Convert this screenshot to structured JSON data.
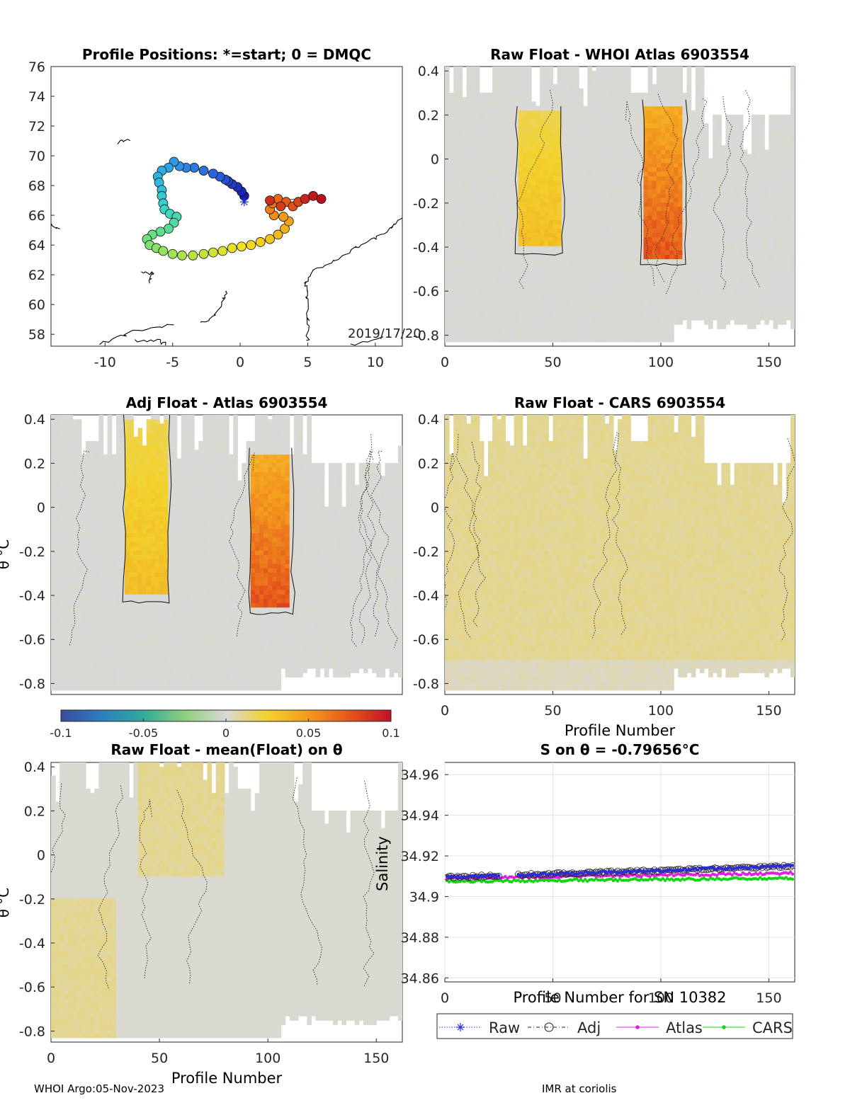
{
  "footer": {
    "left": "WHOI Argo:05-Nov-2023",
    "right": "IMR at coriolis"
  },
  "colorbar": {
    "ticks": [
      "-0.1",
      "-0.05",
      "0",
      "0.05",
      "0.1"
    ],
    "tick_values": [
      -0.1,
      -0.05,
      0,
      0.05,
      0.1
    ],
    "range": [
      -0.1,
      0.1
    ],
    "colormap": [
      "#3b4c9a",
      "#2f7fc0",
      "#31a99b",
      "#8fcf7a",
      "#d8d8d8",
      "#f2d22c",
      "#f39a1e",
      "#e5551c",
      "#c0102b"
    ]
  },
  "chart_data": [
    {
      "type": "scatter",
      "id": "map",
      "title": "Profile Positions: *=start; 0 = DMQC",
      "xlim": [
        -14,
        12
      ],
      "ylim": [
        57.2,
        76
      ],
      "xticks": [
        -10,
        -5,
        0,
        5,
        10
      ],
      "yticks": [
        58,
        60,
        62,
        64,
        66,
        68,
        70,
        72,
        74,
        76
      ],
      "annotation": "2019/17/20",
      "start_marker": {
        "lon": 0.3,
        "lat": 66.9
      },
      "track": [
        {
          "lon": 0.3,
          "lat": 67.3
        },
        {
          "lon": 0.1,
          "lat": 67.6
        },
        {
          "lon": -0.2,
          "lat": 67.9
        },
        {
          "lon": -0.6,
          "lat": 68.1
        },
        {
          "lon": -0.9,
          "lat": 68.3
        },
        {
          "lon": -1.1,
          "lat": 68.4
        },
        {
          "lon": -1.5,
          "lat": 68.6
        },
        {
          "lon": -2.0,
          "lat": 68.8
        },
        {
          "lon": -2.7,
          "lat": 69.0
        },
        {
          "lon": -3.4,
          "lat": 69.2
        },
        {
          "lon": -4.0,
          "lat": 69.2
        },
        {
          "lon": -4.5,
          "lat": 69.3
        },
        {
          "lon": -4.9,
          "lat": 69.6
        },
        {
          "lon": -5.3,
          "lat": 69.2
        },
        {
          "lon": -5.8,
          "lat": 69.0
        },
        {
          "lon": -6.1,
          "lat": 68.6
        },
        {
          "lon": -6.0,
          "lat": 68.2
        },
        {
          "lon": -5.8,
          "lat": 67.7
        },
        {
          "lon": -5.8,
          "lat": 67.3
        },
        {
          "lon": -5.7,
          "lat": 66.8
        },
        {
          "lon": -5.6,
          "lat": 66.4
        },
        {
          "lon": -5.2,
          "lat": 66.1
        },
        {
          "lon": -4.7,
          "lat": 65.9
        },
        {
          "lon": -4.9,
          "lat": 65.5
        },
        {
          "lon": -5.3,
          "lat": 65.1
        },
        {
          "lon": -5.9,
          "lat": 64.9
        },
        {
          "lon": -6.5,
          "lat": 64.7
        },
        {
          "lon": -6.9,
          "lat": 64.4
        },
        {
          "lon": -6.7,
          "lat": 64.0
        },
        {
          "lon": -6.2,
          "lat": 63.8
        },
        {
          "lon": -5.7,
          "lat": 63.6
        },
        {
          "lon": -5.0,
          "lat": 63.4
        },
        {
          "lon": -4.3,
          "lat": 63.3
        },
        {
          "lon": -3.5,
          "lat": 63.3
        },
        {
          "lon": -2.7,
          "lat": 63.4
        },
        {
          "lon": -2.0,
          "lat": 63.5
        },
        {
          "lon": -1.3,
          "lat": 63.6
        },
        {
          "lon": -0.6,
          "lat": 63.8
        },
        {
          "lon": 0.1,
          "lat": 63.9
        },
        {
          "lon": 0.8,
          "lat": 64.0
        },
        {
          "lon": 1.5,
          "lat": 64.2
        },
        {
          "lon": 2.2,
          "lat": 64.4
        },
        {
          "lon": 2.8,
          "lat": 64.7
        },
        {
          "lon": 3.3,
          "lat": 65.1
        },
        {
          "lon": 3.6,
          "lat": 65.6
        },
        {
          "lon": 3.2,
          "lat": 65.9
        },
        {
          "lon": 2.5,
          "lat": 66.0
        },
        {
          "lon": 2.2,
          "lat": 66.4
        },
        {
          "lon": 2.4,
          "lat": 66.8
        },
        {
          "lon": 2.8,
          "lat": 67.1
        },
        {
          "lon": 3.4,
          "lat": 66.9
        },
        {
          "lon": 3.9,
          "lat": 66.6
        },
        {
          "lon": 4.3,
          "lat": 66.9
        },
        {
          "lon": 3.0,
          "lat": 66.6
        },
        {
          "lon": 2.2,
          "lat": 67.0
        },
        {
          "lon": 4.8,
          "lat": 67.1
        },
        {
          "lon": 5.4,
          "lat": 67.3
        },
        {
          "lon": 6.0,
          "lat": 67.1
        }
      ]
    },
    {
      "type": "heatmap",
      "id": "raw-atlas",
      "title": "Raw Float - WHOI Atlas  6903554",
      "xlim": [
        0,
        162
      ],
      "ylim": [
        -0.85,
        0.42
      ],
      "xticks": [
        0,
        50,
        100,
        150
      ],
      "yticks": [
        0.4,
        0.2,
        0,
        -0.2,
        -0.4,
        -0.6,
        -0.8
      ],
      "xlabel": "",
      "ylabel": "",
      "bands": [
        {
          "x0": 35,
          "x1": 53,
          "y0": -0.4,
          "y1": 0.22,
          "peak": 0.035
        },
        {
          "x0": 93,
          "x1": 110,
          "y0": -0.45,
          "y1": 0.25,
          "peak": 0.075
        }
      ]
    },
    {
      "type": "heatmap",
      "id": "adj-atlas",
      "title": "Adj Float - Atlas  6903554",
      "xlim": [
        0,
        162
      ],
      "ylim": [
        -0.85,
        0.42
      ],
      "xticks": [],
      "yticks": [
        0.4,
        0.2,
        0,
        -0.2,
        -0.4,
        -0.6,
        -0.8
      ],
      "xlabel": "",
      "ylabel": "θ °C",
      "bands": [
        {
          "x0": 35,
          "x1": 53,
          "y0": -0.4,
          "y1": 0.4,
          "peak": 0.035
        },
        {
          "x0": 93,
          "x1": 110,
          "y0": -0.45,
          "y1": 0.25,
          "peak": 0.075
        }
      ]
    },
    {
      "type": "heatmap",
      "id": "raw-cars",
      "title": "Raw Float - CARS  6903554",
      "xlim": [
        0,
        162
      ],
      "ylim": [
        -0.85,
        0.42
      ],
      "xticks": [
        0,
        50,
        100,
        150
      ],
      "yticks": [
        0.4,
        0.2,
        0,
        -0.2,
        -0.4,
        -0.6,
        -0.8
      ],
      "xlabel": "Profile Number",
      "ylabel": "",
      "bands": []
    },
    {
      "type": "heatmap",
      "id": "raw-mean",
      "title": "Raw Float - mean(Float) on θ",
      "xlim": [
        0,
        162
      ],
      "ylim": [
        -0.85,
        0.42
      ],
      "xticks": [
        0,
        50,
        100,
        150
      ],
      "yticks": [
        0.4,
        0.2,
        0,
        -0.2,
        -0.4,
        -0.6,
        -0.8
      ],
      "xlabel": "Profile Number",
      "ylabel": "θ °C",
      "bands": []
    },
    {
      "type": "line",
      "id": "salinity",
      "title": "S on θ = -0.79656°C",
      "xlim": [
        0,
        162
      ],
      "ylim": [
        34.858,
        34.966
      ],
      "xticks": [
        0,
        50,
        100,
        150
      ],
      "yticks": [
        34.86,
        34.88,
        34.9,
        34.92,
        34.94,
        34.96
      ],
      "xlabel": "Profile Number for SN 10382",
      "ylabel": "Salinity",
      "grid": true,
      "legend": [
        "Raw",
        "Adj",
        "Atlas",
        "CARS"
      ],
      "series": [
        {
          "name": "Raw",
          "color": "#2b2bd9",
          "start": 34.9095,
          "end": 34.915
        },
        {
          "name": "Adj",
          "color": "#222222",
          "start": 34.9095,
          "end": 34.915
        },
        {
          "name": "Atlas",
          "color": "#e020e0",
          "start": 34.909,
          "end": 34.9115
        },
        {
          "name": "CARS",
          "color": "#14d414",
          "start": 34.9075,
          "end": 34.909
        }
      ]
    }
  ]
}
